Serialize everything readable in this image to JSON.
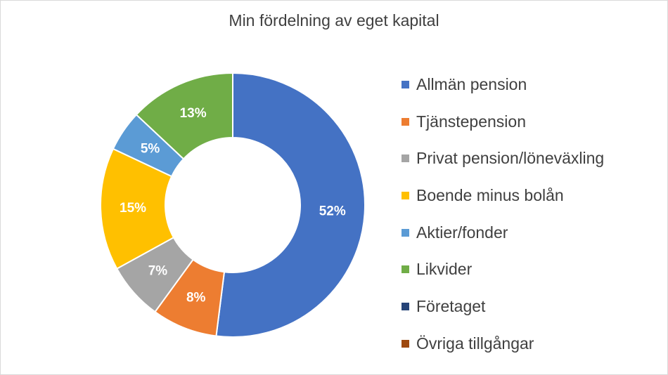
{
  "chart_data": {
    "type": "pie",
    "donut": true,
    "title": "Min fördelning av eget kapital",
    "categories": [
      "Allmän pension",
      "Tjänstepension",
      "Privat pension/löneväxling",
      "Boende minus bolån",
      "Aktier/fonder",
      "Likvider",
      "Företaget",
      "Övriga tillgångar"
    ],
    "values": [
      52,
      8,
      7,
      15,
      5,
      13,
      0,
      0
    ],
    "data_labels": [
      "52%",
      "8%",
      "7%",
      "15%",
      "5%",
      "13%",
      "",
      ""
    ],
    "colors": [
      "#4472c4",
      "#ed7d31",
      "#a5a5a5",
      "#ffc000",
      "#5b9bd5",
      "#70ad47",
      "#264478",
      "#9e480e"
    ],
    "legend_position": "right"
  }
}
